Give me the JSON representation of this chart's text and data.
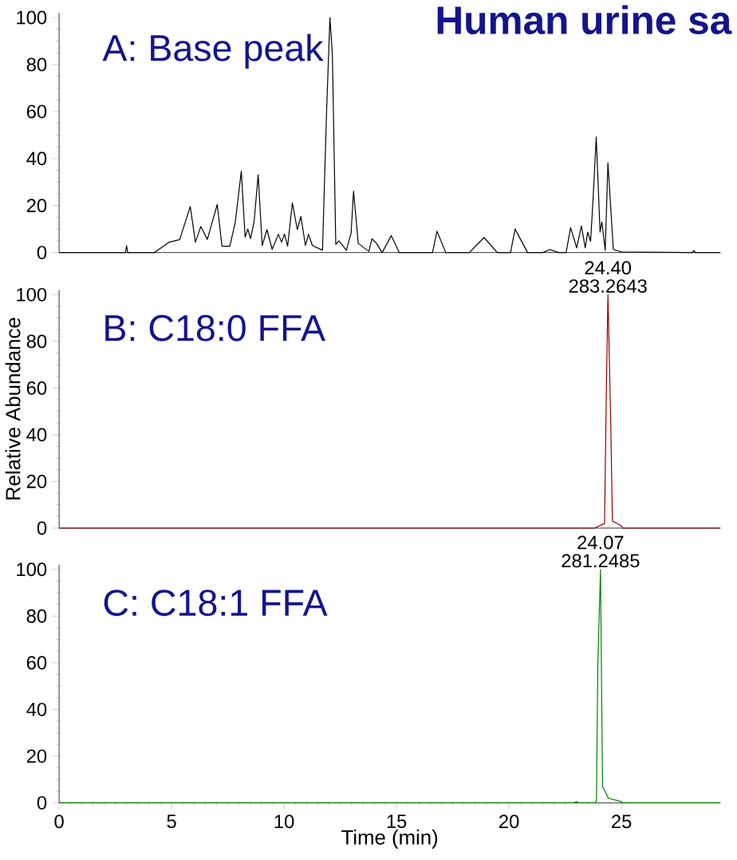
{
  "chart_data": [
    {
      "type": "line",
      "title": "Human urine sa",
      "subtitle": "A: Base peak",
      "color": "#000000",
      "xlim": [
        0,
        29.4
      ],
      "ylim": [
        0,
        102
      ],
      "yticks": [
        0,
        20,
        40,
        60,
        80,
        100
      ],
      "tick_labels": "y",
      "x": [
        0,
        2.95,
        3.0,
        3.05,
        3.59,
        4.24,
        4.88,
        5.36,
        5.83,
        6.06,
        6.3,
        6.59,
        7.03,
        7.24,
        7.59,
        7.83,
        8.1,
        8.27,
        8.39,
        8.51,
        8.67,
        8.85,
        9.03,
        9.24,
        9.47,
        9.75,
        9.89,
        10.02,
        10.16,
        10.37,
        10.59,
        10.75,
        10.95,
        11.09,
        11.26,
        11.71,
        11.89,
        12.04,
        12.15,
        12.3,
        12.44,
        12.77,
        12.98,
        13.09,
        13.3,
        13.77,
        13.91,
        14.12,
        14.36,
        14.77,
        15.12,
        16.6,
        16.8,
        17.19,
        18.24,
        18.89,
        19.48,
        20.07,
        20.27,
        20.83,
        21.5,
        21.83,
        22.2,
        22.54,
        22.74,
        23.01,
        23.22,
        23.39,
        23.5,
        23.63,
        23.74,
        23.88,
        24.05,
        24.13,
        24.28,
        24.4,
        24.64,
        25.01,
        28.15,
        28.22,
        28.29,
        29.4
      ],
      "values": [
        0,
        0,
        3,
        0,
        0,
        0,
        4.4,
        5.5,
        19.6,
        4.4,
        11.1,
        5.6,
        20.5,
        2.7,
        2.7,
        12.8,
        34.6,
        6.6,
        10.0,
        5.9,
        13.3,
        33.1,
        3.0,
        9.8,
        1.4,
        7.8,
        4.4,
        7.9,
        2.7,
        21.1,
        9.8,
        15.4,
        3.0,
        7.8,
        3.0,
        1.0,
        59.6,
        100,
        84,
        3.5,
        5.0,
        1.0,
        8.2,
        26.1,
        3.9,
        0.5,
        5.9,
        3.8,
        0,
        7.2,
        0,
        0,
        9.1,
        0,
        0,
        6.4,
        0,
        0,
        10,
        0,
        0,
        1.3,
        0,
        0,
        10.6,
        2.0,
        11.4,
        2.0,
        8.7,
        4.8,
        23,
        49.2,
        8.7,
        13.1,
        1.0,
        38.2,
        1.3,
        0.3,
        0,
        0.8,
        0,
        0
      ]
    },
    {
      "type": "line",
      "title": "B: C18:0 FFA",
      "ylabel": "Relative Abundance",
      "color": "#8b0000",
      "xlim": [
        0,
        29.4
      ],
      "ylim": [
        0,
        102
      ],
      "yticks": [
        0,
        20,
        40,
        60,
        80,
        100
      ],
      "tick_labels": "y",
      "x": [
        0,
        23.8,
        24.25,
        24.33,
        24.4,
        24.52,
        24.6,
        24.99,
        25.05,
        29.4
      ],
      "values": [
        0,
        0,
        2,
        59,
        100,
        47.6,
        3,
        1,
        0,
        0
      ],
      "annotations": [
        "24.40",
        "283.2643"
      ]
    },
    {
      "type": "line",
      "title": "C: C18:1 FFA",
      "xlabel": "Time (min)",
      "color": "#008000",
      "xlim": [
        0,
        29.4
      ],
      "ylim": [
        0,
        102
      ],
      "xticks": [
        0,
        5,
        10,
        15,
        20,
        25
      ],
      "yticks": [
        0,
        20,
        40,
        60,
        80,
        100
      ],
      "x": [
        0,
        22.9,
        23.0,
        23.1,
        23.85,
        23.89,
        23.95,
        24.07,
        24.16,
        24.42,
        25.0,
        25.05,
        29.4
      ],
      "values": [
        0,
        0,
        0.5,
        0,
        0,
        1,
        59,
        100,
        7,
        2,
        0.5,
        0,
        0
      ],
      "annotations": [
        "24.07",
        "281.2485"
      ]
    }
  ]
}
